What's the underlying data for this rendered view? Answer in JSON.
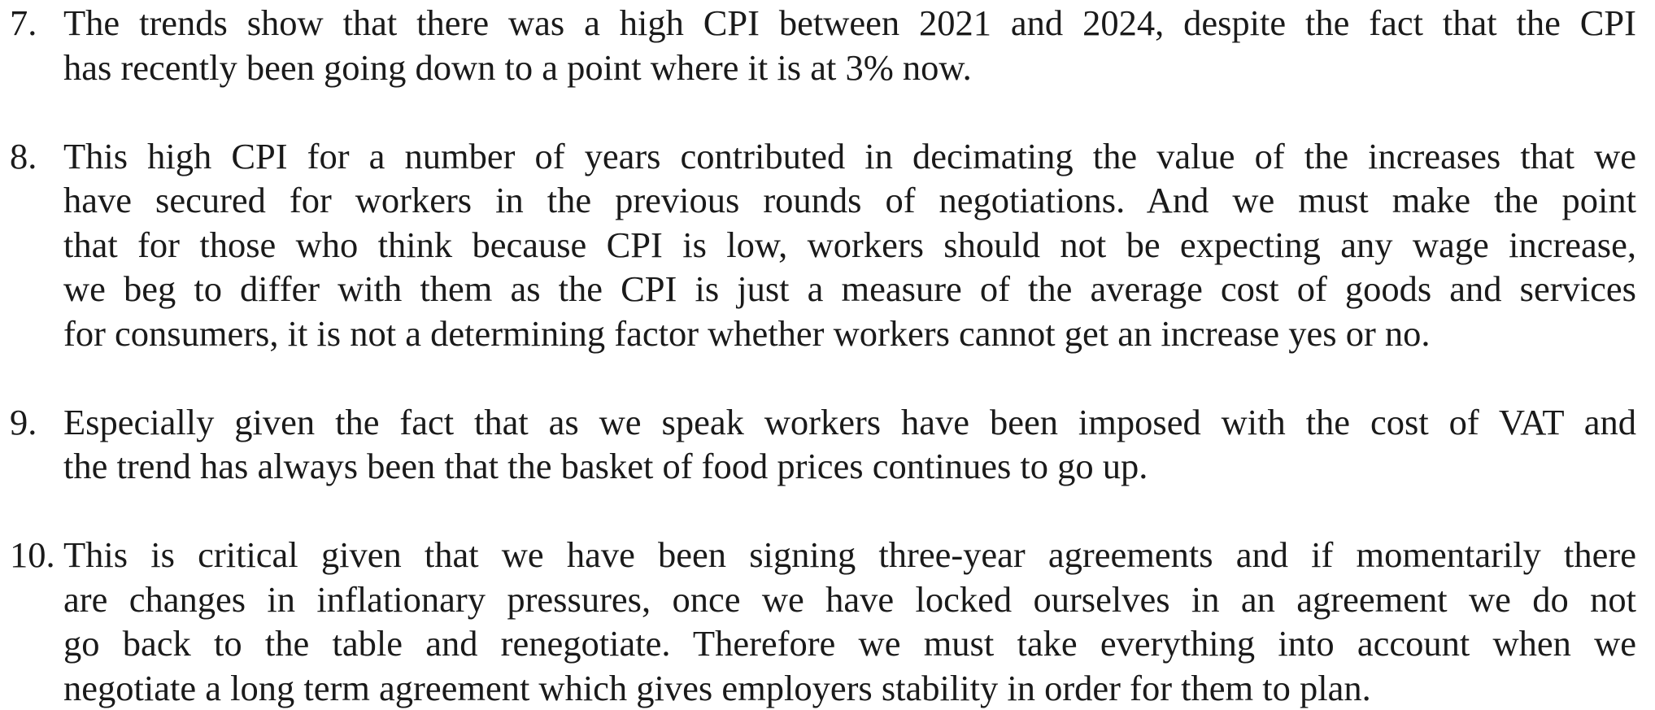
{
  "items": [
    {
      "number": "7.",
      "lines": [
        "The trends show that there was a high CPI between 2021 and 2024, despite the fact that the CPI",
        "has recently been going down to a point where it is at 3% now."
      ]
    },
    {
      "number": "8.",
      "lines": [
        "This high CPI for a number of years contributed in decimating the value of the increases that we",
        "have secured for workers in the previous rounds of negotiations. And we must make the point",
        "that for those who think because CPI is low, workers should not be expecting any wage increase,",
        "we beg to differ with them as the CPI is just a measure of the average cost of goods and services",
        "for consumers, it is not a determining factor whether workers cannot get an increase yes or no."
      ]
    },
    {
      "number": "9.",
      "lines": [
        "Especially given the fact that as we speak workers have been imposed with the cost of VAT and",
        "the trend has always been that the basket of food prices continues to go up."
      ]
    },
    {
      "number": "10.",
      "lines": [
        "This is critical given that we have been signing three-year agreements and if momentarily there",
        "are changes in inflationary pressures, once we have locked ourselves in an agreement we do not",
        "go back to the table and renegotiate. Therefore we must take everything into account when we",
        "negotiate a long term agreement which gives employers stability in order for them to plan."
      ]
    }
  ]
}
